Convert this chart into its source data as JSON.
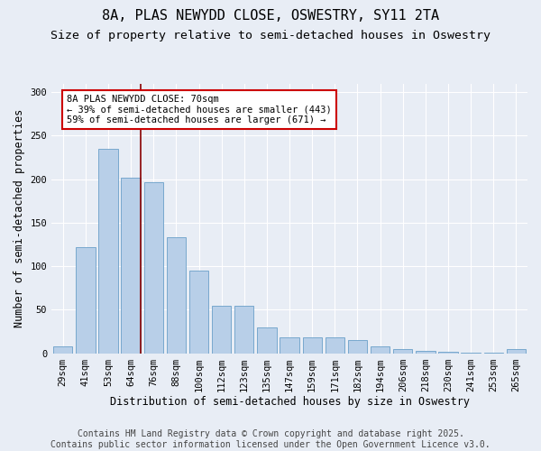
{
  "title_line1": "8A, PLAS NEWYDD CLOSE, OSWESTRY, SY11 2TA",
  "title_line2": "Size of property relative to semi-detached houses in Oswestry",
  "xlabel": "Distribution of semi-detached houses by size in Oswestry",
  "ylabel": "Number of semi-detached properties",
  "categories": [
    "29sqm",
    "41sqm",
    "53sqm",
    "64sqm",
    "76sqm",
    "88sqm",
    "100sqm",
    "112sqm",
    "123sqm",
    "135sqm",
    "147sqm",
    "159sqm",
    "171sqm",
    "182sqm",
    "194sqm",
    "206sqm",
    "218sqm",
    "230sqm",
    "241sqm",
    "253sqm",
    "265sqm"
  ],
  "values": [
    8,
    122,
    235,
    202,
    197,
    133,
    95,
    55,
    55,
    30,
    18,
    18,
    18,
    15,
    8,
    5,
    3,
    2,
    1,
    1,
    5
  ],
  "bar_color": "#b8cfe8",
  "bar_edge_color": "#6a9fc8",
  "property_line_x": 3.425,
  "property_line_color": "#880000",
  "annotation_text": "8A PLAS NEWYDD CLOSE: 70sqm\n← 39% of semi-detached houses are smaller (443)\n59% of semi-detached houses are larger (671) →",
  "annotation_box_color": "#ffffff",
  "annotation_box_edge": "#cc0000",
  "ylim": [
    0,
    310
  ],
  "yticks": [
    0,
    50,
    100,
    150,
    200,
    250,
    300
  ],
  "background_color": "#e8edf5",
  "plot_bg_color": "#e8edf5",
  "footer_text": "Contains HM Land Registry data © Crown copyright and database right 2025.\nContains public sector information licensed under the Open Government Licence v3.0.",
  "title_fontsize": 11,
  "subtitle_fontsize": 9.5,
  "axis_label_fontsize": 8.5,
  "tick_fontsize": 7.5,
  "annotation_fontsize": 7.5,
  "footer_fontsize": 7
}
